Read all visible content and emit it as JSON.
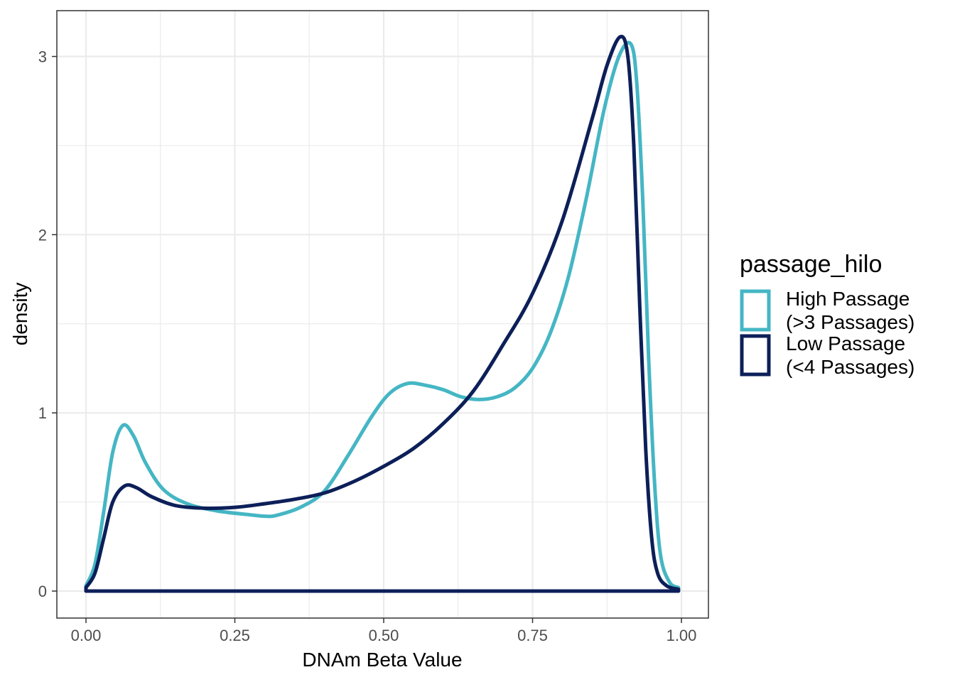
{
  "chart_data": {
    "type": "line",
    "subtype": "density",
    "xlabel": "DNAm Beta Value",
    "ylabel": "density",
    "xlim": [
      0,
      1
    ],
    "ylim": [
      0,
      3.2
    ],
    "x_ticks": [
      "0.00",
      "0.25",
      "0.50",
      "0.75",
      "1.00"
    ],
    "x_tick_values": [
      0,
      0.25,
      0.5,
      0.75,
      1.0
    ],
    "y_ticks": [
      "0",
      "1",
      "2",
      "3"
    ],
    "y_tick_values": [
      0,
      1,
      2,
      3
    ],
    "grid": true,
    "legend": {
      "title": "passage_hilo",
      "position": "right"
    },
    "series": [
      {
        "name": "High Passage\n(>3 Passages)",
        "name_lines": [
          "High Passage",
          "(>3 Passages)"
        ],
        "color": "#45b6c4",
        "points": [
          [
            0.0,
            0.03
          ],
          [
            0.015,
            0.15
          ],
          [
            0.03,
            0.45
          ],
          [
            0.045,
            0.78
          ],
          [
            0.062,
            0.93
          ],
          [
            0.08,
            0.87
          ],
          [
            0.1,
            0.72
          ],
          [
            0.13,
            0.57
          ],
          [
            0.17,
            0.49
          ],
          [
            0.22,
            0.45
          ],
          [
            0.27,
            0.43
          ],
          [
            0.3,
            0.42
          ],
          [
            0.32,
            0.425
          ],
          [
            0.36,
            0.47
          ],
          [
            0.4,
            0.56
          ],
          [
            0.44,
            0.76
          ],
          [
            0.48,
            0.98
          ],
          [
            0.51,
            1.11
          ],
          [
            0.54,
            1.165
          ],
          [
            0.57,
            1.155
          ],
          [
            0.6,
            1.13
          ],
          [
            0.63,
            1.09
          ],
          [
            0.66,
            1.075
          ],
          [
            0.69,
            1.09
          ],
          [
            0.72,
            1.14
          ],
          [
            0.75,
            1.25
          ],
          [
            0.78,
            1.45
          ],
          [
            0.81,
            1.76
          ],
          [
            0.84,
            2.2
          ],
          [
            0.87,
            2.7
          ],
          [
            0.895,
            3.0
          ],
          [
            0.915,
            3.07
          ],
          [
            0.925,
            2.85
          ],
          [
            0.935,
            2.2
          ],
          [
            0.945,
            1.3
          ],
          [
            0.955,
            0.6
          ],
          [
            0.965,
            0.2
          ],
          [
            0.98,
            0.05
          ],
          [
            0.995,
            0.02
          ]
        ]
      },
      {
        "name": "Low Passage\n(<4 Passages)",
        "name_lines": [
          "Low Passage",
          "(<4 Passages)"
        ],
        "color": "#0c1f58",
        "points": [
          [
            0.0,
            0.02
          ],
          [
            0.015,
            0.1
          ],
          [
            0.03,
            0.3
          ],
          [
            0.045,
            0.5
          ],
          [
            0.065,
            0.59
          ],
          [
            0.085,
            0.58
          ],
          [
            0.11,
            0.53
          ],
          [
            0.15,
            0.48
          ],
          [
            0.2,
            0.465
          ],
          [
            0.25,
            0.47
          ],
          [
            0.3,
            0.49
          ],
          [
            0.35,
            0.515
          ],
          [
            0.4,
            0.55
          ],
          [
            0.45,
            0.615
          ],
          [
            0.5,
            0.7
          ],
          [
            0.55,
            0.8
          ],
          [
            0.6,
            0.94
          ],
          [
            0.65,
            1.12
          ],
          [
            0.7,
            1.38
          ],
          [
            0.75,
            1.67
          ],
          [
            0.8,
            2.08
          ],
          [
            0.85,
            2.65
          ],
          [
            0.875,
            2.95
          ],
          [
            0.897,
            3.11
          ],
          [
            0.91,
            3.0
          ],
          [
            0.92,
            2.5
          ],
          [
            0.93,
            1.6
          ],
          [
            0.94,
            0.8
          ],
          [
            0.95,
            0.3
          ],
          [
            0.96,
            0.1
          ],
          [
            0.975,
            0.03
          ],
          [
            0.995,
            0.01
          ]
        ]
      }
    ]
  }
}
